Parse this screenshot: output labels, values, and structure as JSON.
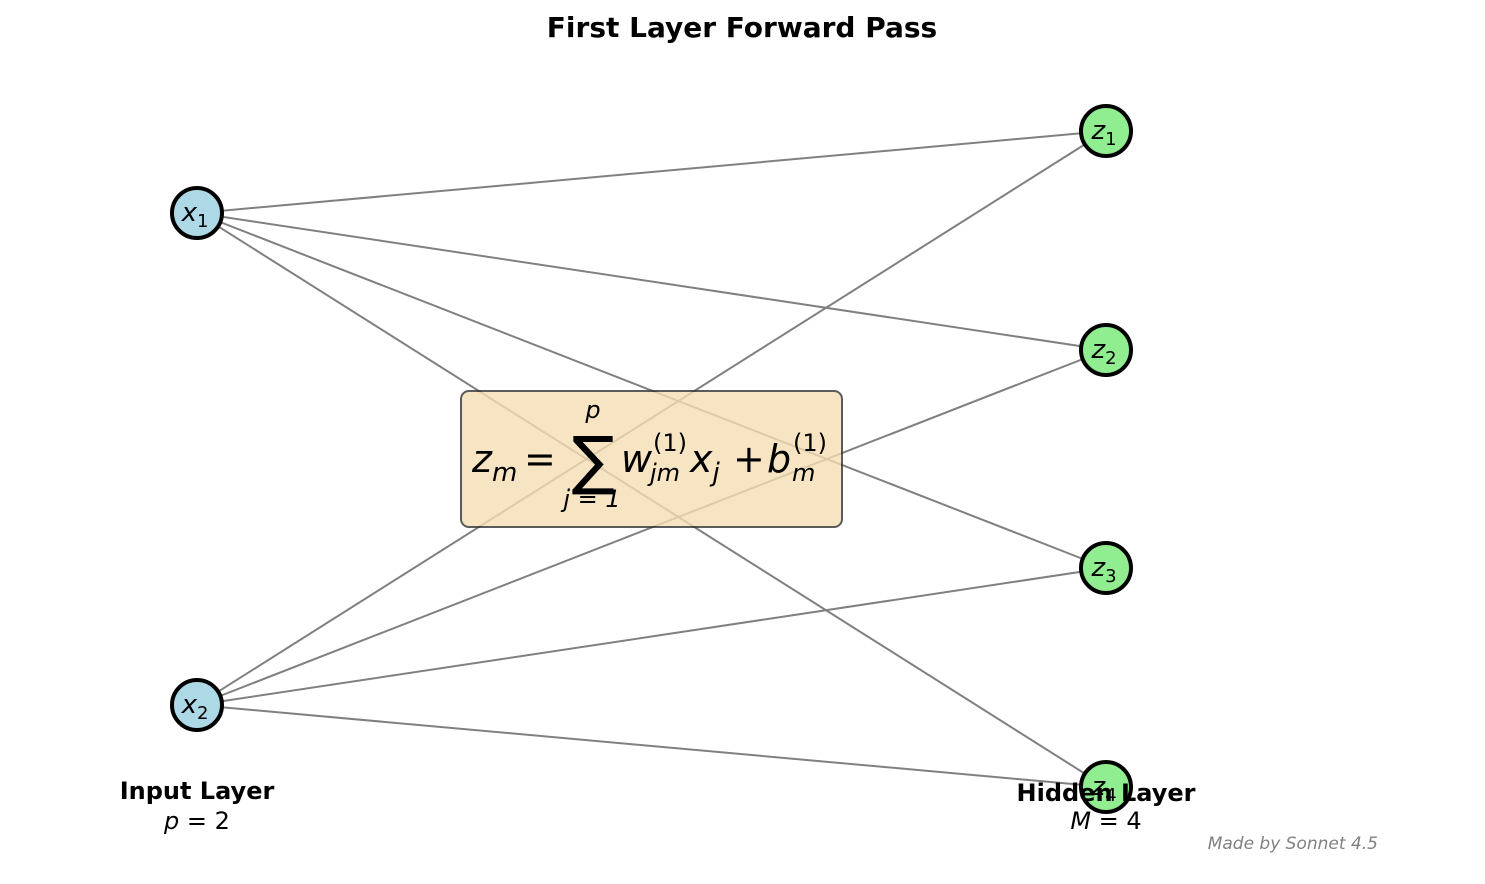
{
  "title": "First Layer Forward Pass",
  "input_layer": {
    "title": "Input Layer",
    "param_symbol": "p",
    "param_value": "2",
    "node_color": "#add8e6",
    "nodes": [
      {
        "symbol": "x",
        "index": "1"
      },
      {
        "symbol": "x",
        "index": "2"
      }
    ]
  },
  "hidden_layer": {
    "title": "Hidden Layer",
    "param_symbol": "M",
    "param_value": "4",
    "node_color": "#90ee90",
    "nodes": [
      {
        "symbol": "z",
        "index": "1"
      },
      {
        "symbol": "z",
        "index": "2"
      },
      {
        "symbol": "z",
        "index": "3"
      },
      {
        "symbol": "z",
        "index": "4"
      }
    ]
  },
  "edge_color": "#808080",
  "formula": {
    "box_color": "#f5deb3",
    "lhs_symbol": "z",
    "lhs_index": "m",
    "sum_upper": "p",
    "sum_lower": "j = 1",
    "weight_symbol": "w",
    "weight_index": "jm",
    "weight_superscript": "(1)",
    "input_symbol": "x",
    "input_index": "j",
    "bias_symbol": "b",
    "bias_index": "m",
    "bias_superscript": "(1)"
  },
  "credit": "Made by Sonnet 4.5"
}
